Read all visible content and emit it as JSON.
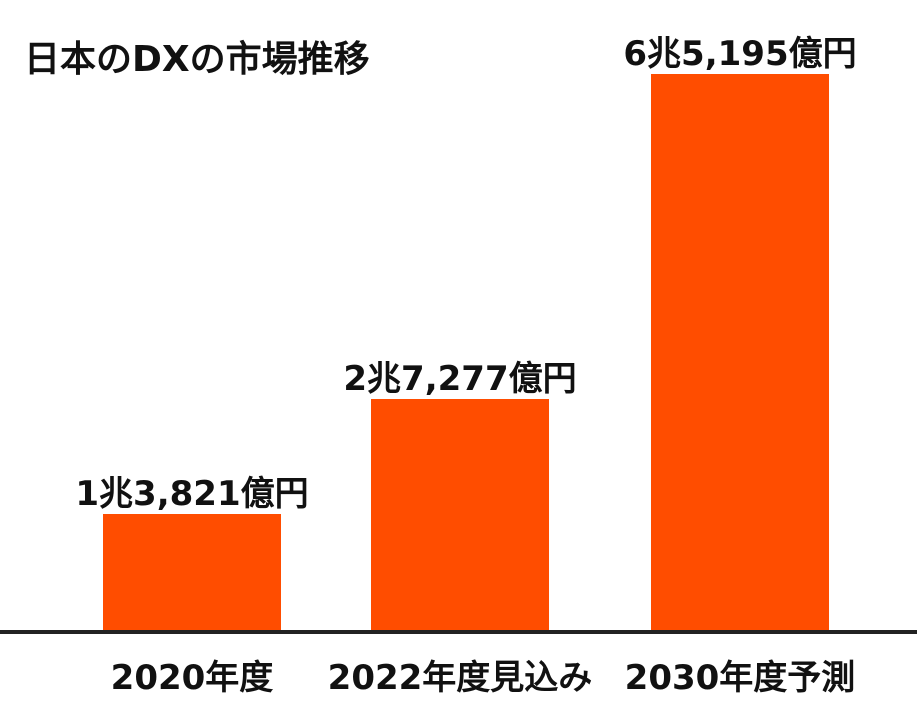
{
  "chart_data": {
    "type": "bar",
    "title": "日本のDXの市場推移",
    "categories": [
      "2020年度",
      "2022年度見込み",
      "2030年度予測"
    ],
    "values": [
      13821,
      27277,
      65195
    ],
    "value_labels": [
      "1兆3,821億円",
      "2兆7,277億円",
      "6兆5,195億円"
    ],
    "unit": "億円",
    "ylim": [
      0,
      70000
    ],
    "grid": false,
    "legend": "none",
    "bar_color": "#ff4d00"
  }
}
